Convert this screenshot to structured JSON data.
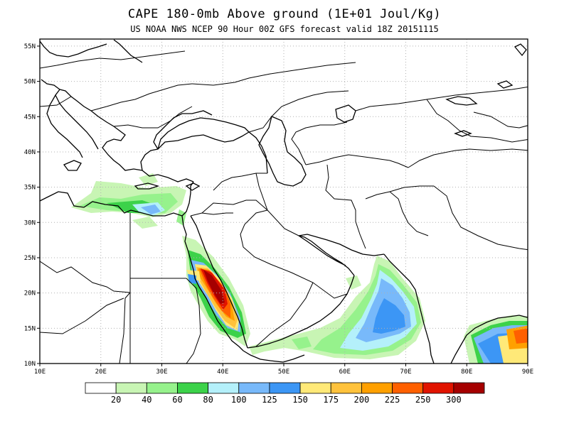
{
  "title": "CAPE 180-0mb Above ground (1E+01 Joul/Kg)",
  "subtitle": "US NOAA NWS NCEP 90 Hour 00Z GFS forecast valid 18Z 20151115",
  "map": {
    "lon_min": 10,
    "lon_max": 90,
    "lat_min": 10,
    "lat_max": 56,
    "lon_ticks": [
      "10E",
      "20E",
      "30E",
      "40E",
      "50E",
      "60E",
      "70E",
      "80E",
      "90E"
    ],
    "lat_ticks": [
      "10N",
      "15N",
      "20N",
      "25N",
      "30N",
      "35N",
      "40N",
      "45N",
      "50N",
      "55N"
    ],
    "grid": "dotted"
  },
  "colors": {
    "coast": "#000000",
    "grid": "#b0b0b0"
  },
  "legend": {
    "labels": [
      "20",
      "40",
      "60",
      "80",
      "100",
      "125",
      "150",
      "175",
      "200",
      "225",
      "250",
      "300"
    ],
    "colors": [
      "#ffffff",
      "#c8f5b4",
      "#96f28c",
      "#3cd24a",
      "#b4f0fa",
      "#78b9fa",
      "#3c96f5",
      "#ffe978",
      "#ffc23c",
      "#ffa000",
      "#ff6000",
      "#e11400",
      "#a50000"
    ]
  },
  "chart_data": {
    "type": "heatmap",
    "variable": "CAPE 180-0mb Above ground",
    "units": "1E+01 Joul/Kg",
    "regions": [
      {
        "region": "Red Sea (Saudi coast / Eritrea)",
        "lon": [
          35,
          43
        ],
        "lat": [
          14,
          25
        ],
        "max_value": 300
      },
      {
        "region": "Eastern Mediterranean coast",
        "lon": [
          23,
          35
        ],
        "lat": [
          31,
          36
        ],
        "max_value": 125
      },
      {
        "region": "Arabian Sea / Gulf of Oman",
        "lon": [
          44,
          72
        ],
        "lat": [
          11,
          26
        ],
        "max_value": 150
      },
      {
        "region": "Bay of Bengal",
        "lon": [
          80,
          90
        ],
        "lat": [
          10,
          17
        ],
        "max_value": 250
      }
    ]
  }
}
